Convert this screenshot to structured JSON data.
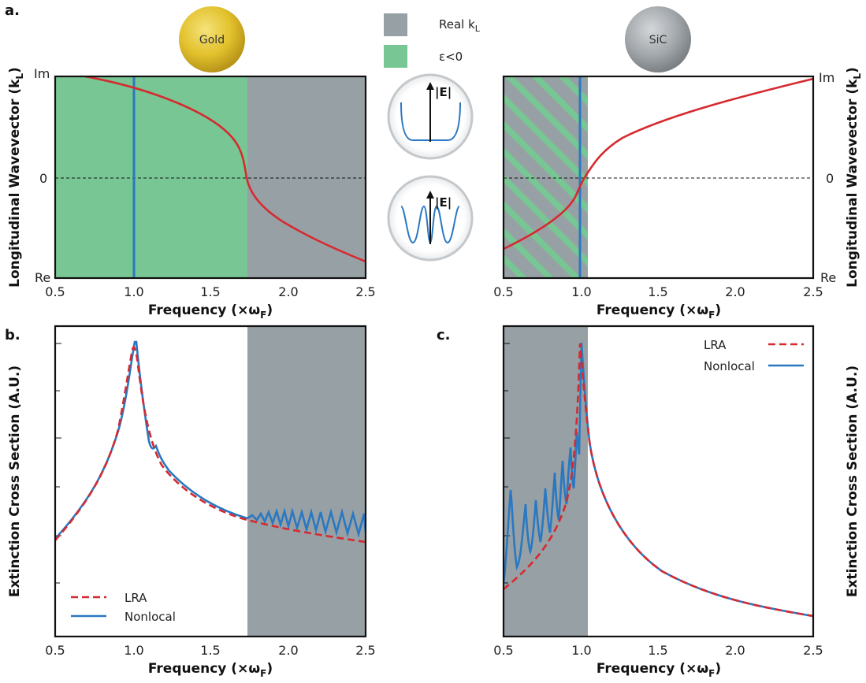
{
  "panels": {
    "a": "a.",
    "b": "b.",
    "c": "c."
  },
  "spheres": {
    "gold": "Gold",
    "sic": "SiC"
  },
  "legend_top": {
    "real_kl": "Real k",
    "real_kl_sub": "L",
    "eps_neg": "ε<0"
  },
  "field_label": "|E|",
  "axis_text": {
    "freq": "Frequency (×ω",
    "freq_sub": "F",
    "freq_close": ")",
    "kl": "Longitudinal Wavevector (k",
    "kl_sub": "L",
    "kl_close": ")",
    "ext": "Extinction Cross Section (A.U.)",
    "im": "Im",
    "zero": "0",
    "re": "Re"
  },
  "legend_bottom": {
    "lra": "LRA",
    "nonlocal": "Nonlocal"
  },
  "colors": {
    "green": "#78c693",
    "grey": "#97a0a5",
    "red": "#d62a2f",
    "blue": "#2a78c2",
    "gold": "#e2c12c",
    "sic": "#a3a8ac"
  },
  "chart_data": [
    {
      "id": "a-gold",
      "type": "line",
      "xlabel": "Frequency (×ωF)",
      "ylabel": "Longitudinal Wavevector (kL)",
      "xlim": [
        0.5,
        2.5
      ],
      "xticks": [
        0.5,
        1.0,
        1.5,
        2.0,
        2.5
      ],
      "yticks_text": [
        "Im",
        "0",
        "Re"
      ],
      "shaded": [
        {
          "from": 0.5,
          "to": 1.73,
          "meaning": "ε<0"
        },
        {
          "from": 1.73,
          "to": 2.5,
          "meaning": "Real kL"
        }
      ],
      "vline": 1.0,
      "series": [
        {
          "x": [
            0.7,
            0.9,
            1.1,
            1.3,
            1.5,
            1.65,
            1.7,
            1.73,
            1.76,
            1.85,
            2.0,
            2.2,
            2.5
          ],
          "y": [
            1.0,
            0.85,
            0.72,
            0.58,
            0.42,
            0.26,
            0.17,
            0.03,
            -0.18,
            -0.34,
            -0.48,
            -0.62,
            -0.8
          ]
        }
      ]
    },
    {
      "id": "a-sic",
      "type": "line",
      "xlabel": "Frequency (×ωF)",
      "ylabel": "Longitudinal Wavevector (kL)",
      "xlim": [
        0.5,
        2.5
      ],
      "xticks": [
        0.5,
        1.0,
        1.5,
        2.0,
        2.5
      ],
      "yticks_text": [
        "Im",
        "0",
        "Re"
      ],
      "shaded": [
        {
          "from": 0.5,
          "to": 1.05,
          "meaning": "Real kL and ε<0"
        }
      ],
      "vline": 1.0,
      "series": [
        {
          "x": [
            0.5,
            0.7,
            0.9,
            0.97,
            1.0,
            1.03,
            1.07,
            1.15,
            1.3,
            1.6,
            2.0,
            2.5
          ],
          "y": [
            -0.72,
            -0.55,
            -0.35,
            -0.22,
            -0.1,
            0.05,
            0.18,
            0.32,
            0.44,
            0.6,
            0.76,
            0.97
          ]
        }
      ]
    },
    {
      "id": "b-gold",
      "type": "line",
      "xlabel": "Frequency (×ωF)",
      "ylabel": "Extinction Cross Section (A.U.)",
      "xlim": [
        0.5,
        2.5
      ],
      "xticks": [
        0.5,
        1.0,
        1.5,
        2.0,
        2.5
      ],
      "shaded": [
        {
          "from": 1.74,
          "to": 2.5
        }
      ],
      "series": [
        {
          "name": "LRA",
          "x": [
            0.5,
            0.7,
            0.85,
            0.95,
            1.0,
            1.05,
            1.15,
            1.3,
            1.5,
            1.74,
            2.0,
            2.5
          ],
          "y": [
            0.32,
            0.45,
            0.6,
            0.8,
            0.95,
            0.8,
            0.6,
            0.49,
            0.42,
            0.36,
            0.33,
            0.28
          ]
        },
        {
          "name": "Nonlocal",
          "x": [
            0.5,
            0.7,
            0.85,
            0.95,
            1.02,
            1.07,
            1.15,
            1.17,
            1.3,
            1.5,
            1.74,
            2.5
          ],
          "y": [
            0.32,
            0.45,
            0.6,
            0.78,
            0.98,
            0.82,
            0.63,
            0.62,
            0.5,
            0.42,
            0.37,
            0.4
          ]
        }
      ]
    },
    {
      "id": "c-sic",
      "type": "line",
      "xlabel": "Frequency (×ωF)",
      "ylabel": "Extinction Cross Section (A.U.)",
      "xlim": [
        0.5,
        2.5
      ],
      "xticks": [
        0.5,
        1.0,
        1.5,
        2.0,
        2.5
      ],
      "shaded": [
        {
          "from": 0.5,
          "to": 1.05
        }
      ],
      "series": [
        {
          "name": "LRA",
          "x": [
            0.5,
            0.7,
            0.9,
            0.97,
            1.01,
            1.05,
            1.2,
            1.5,
            2.0,
            2.5
          ],
          "y": [
            0.2,
            0.32,
            0.5,
            0.7,
            0.95,
            0.72,
            0.52,
            0.36,
            0.24,
            0.15
          ]
        },
        {
          "name": "Nonlocal",
          "x": [
            0.5,
            0.55,
            0.7,
            0.9,
            0.97,
            1.01,
            1.05,
            1.2,
            1.5,
            2.0,
            2.5
          ],
          "y": [
            0.22,
            0.5,
            0.3,
            0.7,
            0.8,
            0.95,
            0.72,
            0.52,
            0.36,
            0.24,
            0.15
          ]
        }
      ]
    }
  ]
}
